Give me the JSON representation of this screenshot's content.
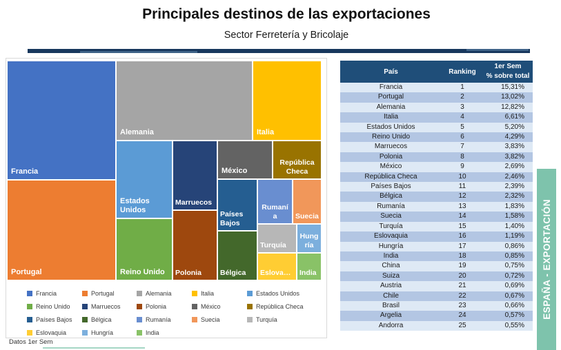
{
  "header": {
    "title": "Principales destinos de las exportaciones",
    "subtitle": "Sector Ferretería y Bricolaje"
  },
  "banner": {
    "label": "ESPAÑA - EXPORTACIÓN",
    "color": "#7EC3AC"
  },
  "footer": {
    "note": "Datos 1er Sem"
  },
  "theme": {
    "divider_color": "#17375D",
    "table_header_bg": "#1F4E79",
    "table_row_light": "#DEE9F5",
    "table_row_dark": "#B3C6E3"
  },
  "countries": [
    {
      "name": "Francia",
      "color": "#4472C4"
    },
    {
      "name": "Portugal",
      "color": "#ED7D31"
    },
    {
      "name": "Alemania",
      "color": "#A5A5A5"
    },
    {
      "name": "Italia",
      "color": "#FFC000"
    },
    {
      "name": "Estados Unidos",
      "color": "#5B9BD5"
    },
    {
      "name": "Reino Unido",
      "color": "#70AD47"
    },
    {
      "name": "Marruecos",
      "color": "#264478"
    },
    {
      "name": "Polonia",
      "color": "#9E480E"
    },
    {
      "name": "México",
      "color": "#636363"
    },
    {
      "name": "República Checa",
      "color": "#997300"
    },
    {
      "name": "Países Bajos",
      "color": "#255E91"
    },
    {
      "name": "Bélgica",
      "color": "#43682B"
    },
    {
      "name": "Rumanía",
      "color": "#698ED0"
    },
    {
      "name": "Suecia",
      "color": "#F1975A"
    },
    {
      "name": "Turquía",
      "color": "#B7B7B7"
    },
    {
      "name": "Eslovaquia",
      "color": "#FFCD33"
    },
    {
      "name": "Hungría",
      "color": "#7CAFDD"
    },
    {
      "name": "India",
      "color": "#89C267"
    }
  ],
  "table": {
    "headers": {
      "country": "País",
      "ranking": "Ranking",
      "sem_line1": "1er Sem",
      "sem_line2": "% sobre total"
    },
    "rows": [
      {
        "country": "Francia",
        "ranking": "1",
        "pct": "15,31%"
      },
      {
        "country": "Portugal",
        "ranking": "2",
        "pct": "13,02%"
      },
      {
        "country": "Alemania",
        "ranking": "3",
        "pct": "12,82%"
      },
      {
        "country": "Italia",
        "ranking": "4",
        "pct": "6,61%"
      },
      {
        "country": "Estados Unidos",
        "ranking": "5",
        "pct": "5,20%"
      },
      {
        "country": "Reino Unido",
        "ranking": "6",
        "pct": "4,29%"
      },
      {
        "country": "Marruecos",
        "ranking": "7",
        "pct": "3,83%"
      },
      {
        "country": "Polonia",
        "ranking": "8",
        "pct": "3,82%"
      },
      {
        "country": "México",
        "ranking": "9",
        "pct": "2,69%"
      },
      {
        "country": "República Checa",
        "ranking": "10",
        "pct": "2,46%"
      },
      {
        "country": "Países Bajos",
        "ranking": "11",
        "pct": "2,39%"
      },
      {
        "country": "Bélgica",
        "ranking": "12",
        "pct": "2,32%"
      },
      {
        "country": "Rumanía",
        "ranking": "13",
        "pct": "1,83%"
      },
      {
        "country": "Suecia",
        "ranking": "14",
        "pct": "1,58%"
      },
      {
        "country": "Turquía",
        "ranking": "15",
        "pct": "1,40%"
      },
      {
        "country": "Eslovaquia",
        "ranking": "16",
        "pct": "1,19%"
      },
      {
        "country": "Hungría",
        "ranking": "17",
        "pct": "0,86%"
      },
      {
        "country": "India",
        "ranking": "18",
        "pct": "0,85%"
      },
      {
        "country": "China",
        "ranking": "19",
        "pct": "0,75%"
      },
      {
        "country": "Suiza",
        "ranking": "20",
        "pct": "0,72%"
      },
      {
        "country": "Austria",
        "ranking": "21",
        "pct": "0,69%"
      },
      {
        "country": "Chile",
        "ranking": "22",
        "pct": "0,67%"
      },
      {
        "country": "Brasil",
        "ranking": "23",
        "pct": "0,66%"
      },
      {
        "country": "Argelia",
        "ranking": "24",
        "pct": "0,57%"
      },
      {
        "country": "Andorra",
        "ranking": "25",
        "pct": "0,55%"
      }
    ]
  },
  "chart_data": {
    "type": "treemap",
    "title": "Principales destinos de las exportaciones",
    "subtitle": "Sector Ferretería y Bricolaje",
    "note": "Datos 1er Sem",
    "value_label": "1er Sem % sobre total",
    "legend_position": "bottom",
    "treemap_shows_top_n": 18,
    "series": [
      {
        "name": "Francia",
        "ranking": 1,
        "value_pct": 15.31
      },
      {
        "name": "Portugal",
        "ranking": 2,
        "value_pct": 13.02
      },
      {
        "name": "Alemania",
        "ranking": 3,
        "value_pct": 12.82
      },
      {
        "name": "Italia",
        "ranking": 4,
        "value_pct": 6.61
      },
      {
        "name": "Estados Unidos",
        "ranking": 5,
        "value_pct": 5.2
      },
      {
        "name": "Reino Unido",
        "ranking": 6,
        "value_pct": 4.29
      },
      {
        "name": "Marruecos",
        "ranking": 7,
        "value_pct": 3.83
      },
      {
        "name": "Polonia",
        "ranking": 8,
        "value_pct": 3.82
      },
      {
        "name": "México",
        "ranking": 9,
        "value_pct": 2.69
      },
      {
        "name": "República Checa",
        "ranking": 10,
        "value_pct": 2.46
      },
      {
        "name": "Países Bajos",
        "ranking": 11,
        "value_pct": 2.39
      },
      {
        "name": "Bélgica",
        "ranking": 12,
        "value_pct": 2.32
      },
      {
        "name": "Rumanía",
        "ranking": 13,
        "value_pct": 1.83
      },
      {
        "name": "Suecia",
        "ranking": 14,
        "value_pct": 1.58
      },
      {
        "name": "Turquía",
        "ranking": 15,
        "value_pct": 1.4
      },
      {
        "name": "Eslovaquia",
        "ranking": 16,
        "value_pct": 1.19
      },
      {
        "name": "Hungría",
        "ranking": 17,
        "value_pct": 0.86
      },
      {
        "name": "India",
        "ranking": 18,
        "value_pct": 0.85
      },
      {
        "name": "China",
        "ranking": 19,
        "value_pct": 0.75
      },
      {
        "name": "Suiza",
        "ranking": 20,
        "value_pct": 0.72
      },
      {
        "name": "Austria",
        "ranking": 21,
        "value_pct": 0.69
      },
      {
        "name": "Chile",
        "ranking": 22,
        "value_pct": 0.67
      },
      {
        "name": "Brasil",
        "ranking": 23,
        "value_pct": 0.66
      },
      {
        "name": "Argelia",
        "ranking": 24,
        "value_pct": 0.57
      },
      {
        "name": "Andorra",
        "ranking": 25,
        "value_pct": 0.55
      }
    ]
  }
}
